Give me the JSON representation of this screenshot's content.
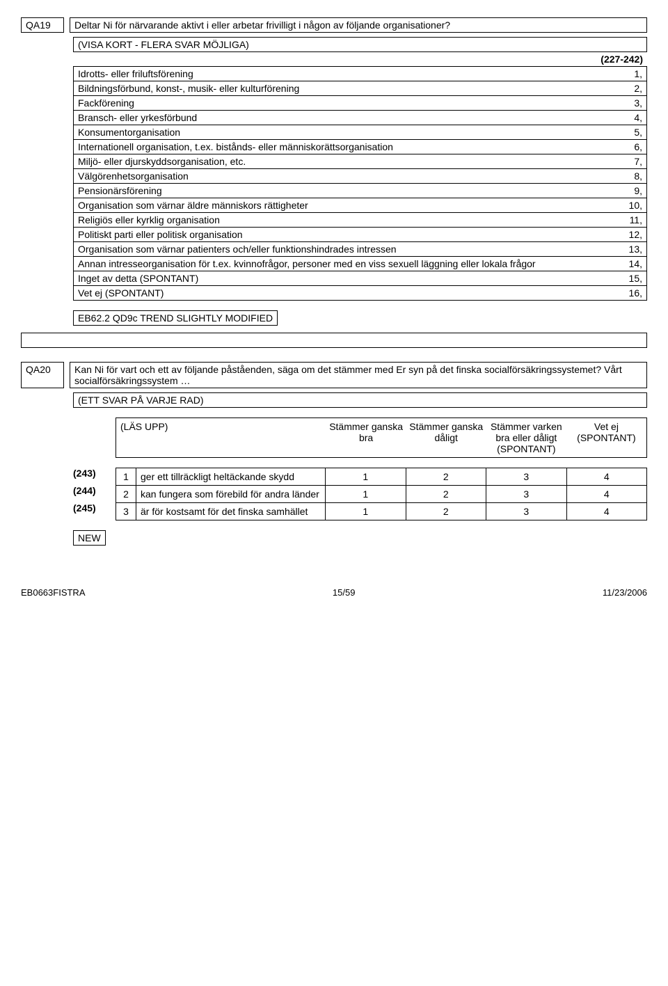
{
  "qa19": {
    "code": "QA19",
    "question": "Deltar Ni för närvarande aktivt i eller arbetar frivilligt i någon av följande organisationer?",
    "instr": "(VISA KORT - FLERA SVAR MÖJLIGA)",
    "range": "(227-242)",
    "options": [
      {
        "label": "Idrotts- eller friluftsförening",
        "val": "1,"
      },
      {
        "label": "Bildningsförbund, konst-, musik- eller kulturförening",
        "val": "2,"
      },
      {
        "label": "Fackförening",
        "val": "3,"
      },
      {
        "label": "Bransch- eller yrkesförbund",
        "val": "4,"
      },
      {
        "label": "Konsumentorganisation",
        "val": "5,"
      },
      {
        "label": "Internationell organisation, t.ex. bistånds- eller människorättsorganisation",
        "val": "6,"
      },
      {
        "label": "Miljö- eller djurskyddsorganisation, etc.",
        "val": "7,"
      },
      {
        "label": "Välgörenhetsorganisation",
        "val": "8,"
      },
      {
        "label": "Pensionärsförening",
        "val": "9,"
      },
      {
        "label": "Organisation som värnar äldre människors rättigheter",
        "val": "10,"
      },
      {
        "label": "Religiös eller kyrklig organisation",
        "val": "11,"
      },
      {
        "label": "Politiskt parti eller politisk organisation",
        "val": "12,"
      },
      {
        "label": "Organisation som värnar patienters och/eller funktionshindrades intressen",
        "val": "13,"
      },
      {
        "label": "Annan intresseorganisation för t.ex. kvinnofrågor, personer med en viss sexuell läggning eller lokala frågor",
        "val": "14,"
      },
      {
        "label": "Inget av detta (SPONTANT)",
        "val": "15,"
      },
      {
        "label": "Vet ej (SPONTANT)",
        "val": "16,"
      }
    ],
    "ref": "EB62.2 QD9c TREND SLIGHTLY MODIFIED"
  },
  "qa20": {
    "code": "QA20",
    "question": "Kan Ni för vart och ett av följande påståenden, säga om det stämmer med Er syn på det finska socialförsäkringssystemet? Vårt socialförsäkringssystem …",
    "instr": "(ETT SVAR PÅ VARJE RAD)",
    "readout": "(LÄS UPP)",
    "cols": [
      "Stämmer ganska bra",
      "Stämmer ganska dåligt",
      "Stämmer varken bra eller dåligt (SPONTANT)",
      "Vet ej (SPONTANT)"
    ],
    "rows": [
      {
        "ref": "(243)",
        "n": "1",
        "text": "ger ett tillräckligt heltäckande skydd",
        "v": [
          "1",
          "2",
          "3",
          "4"
        ]
      },
      {
        "ref": "(244)",
        "n": "2",
        "text": "kan fungera som förebild för andra länder",
        "v": [
          "1",
          "2",
          "3",
          "4"
        ]
      },
      {
        "ref": "(245)",
        "n": "3",
        "text": "är för kostsamt för det finska samhället",
        "v": [
          "1",
          "2",
          "3",
          "4"
        ]
      }
    ],
    "ref": "NEW"
  },
  "footer": {
    "left": "EB0663FISTRA",
    "center": "15/59",
    "right": "11/23/2006"
  }
}
